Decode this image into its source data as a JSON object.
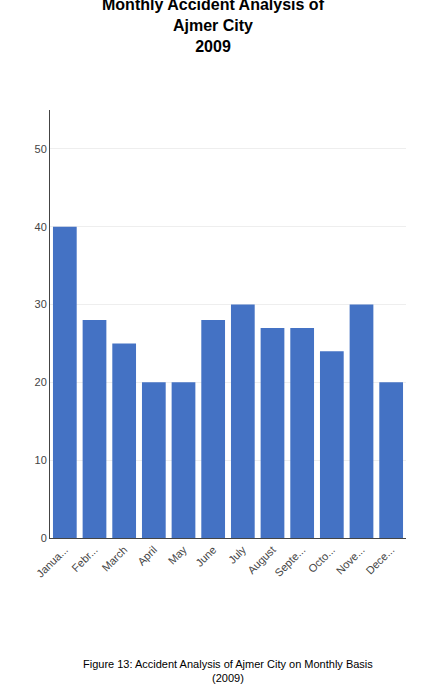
{
  "chart_data": {
    "type": "bar",
    "title": "Monthly Accident Analysis of\nAjmer City\n2009",
    "categories": [
      "Janua...",
      "Febr...",
      "March",
      "April",
      "May",
      "June",
      "July",
      "August",
      "Septe...",
      "Octo...",
      "Nove...",
      "Dece..."
    ],
    "values": [
      40,
      28,
      25,
      20,
      20,
      28,
      30,
      27,
      27,
      24,
      30,
      20
    ],
    "color": "#4472C4",
    "ylim": [
      0,
      55
    ],
    "yticks": [
      0,
      10,
      20,
      30,
      40,
      50
    ],
    "grid": true,
    "annotations": [
      "Figure 13: Accident Analysis of Ajmer City on Monthly Basis\n(2009)"
    ]
  }
}
